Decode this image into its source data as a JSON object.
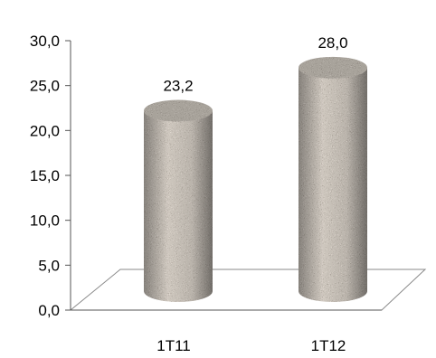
{
  "chart_data": {
    "type": "bar",
    "style": "3d-cylinder",
    "bar_texture": "granite",
    "bar_color": "#8f8478",
    "categories": [
      "1T11",
      "1T12"
    ],
    "values": [
      23.2,
      28.0
    ],
    "data_labels": [
      "23,2",
      "28,0"
    ],
    "y_ticks": [
      {
        "value": 0,
        "label": "0,0"
      },
      {
        "value": 5,
        "label": "5,0"
      },
      {
        "value": 10,
        "label": "10,0"
      },
      {
        "value": 15,
        "label": "15,0"
      },
      {
        "value": 20,
        "label": "20,0"
      },
      {
        "value": 25,
        "label": "25,0"
      },
      {
        "value": 30,
        "label": "30,0"
      }
    ],
    "ylim": [
      0,
      30
    ],
    "title": "",
    "xlabel": "",
    "ylabel": "",
    "grid": false,
    "legend": "none"
  }
}
